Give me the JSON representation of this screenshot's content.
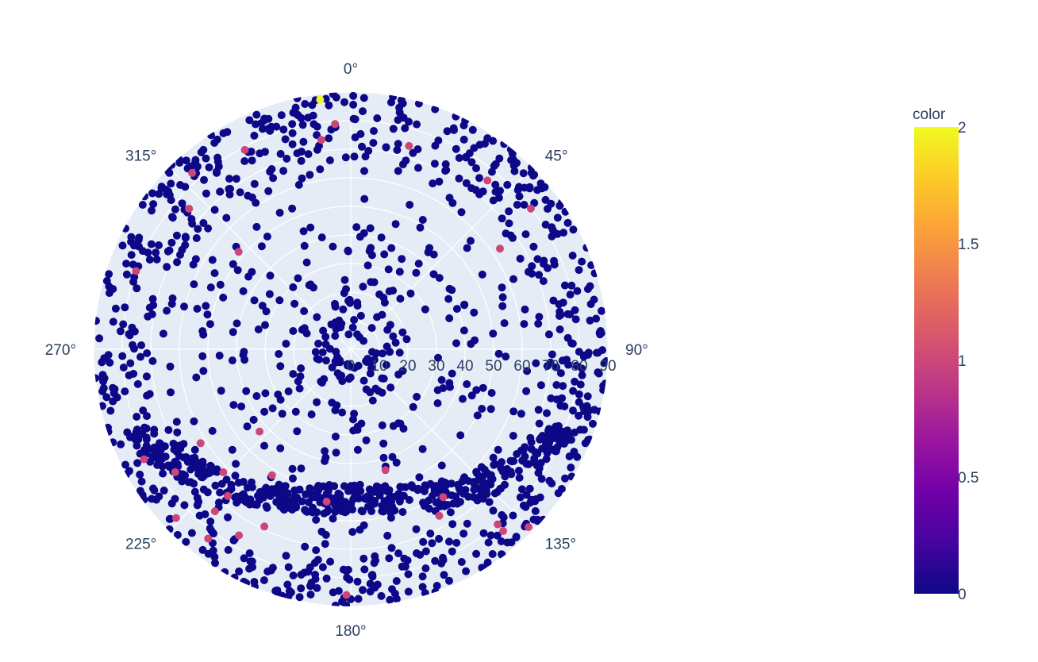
{
  "chart_data": {
    "type": "scatter_polar",
    "title": "",
    "angular_axis": {
      "direction": "clockwise",
      "rotation_zero": "top",
      "ticks": [
        0,
        45,
        90,
        135,
        180,
        225,
        270,
        315
      ],
      "tick_labels": [
        "0°",
        "45°",
        "90°",
        "135°",
        "180°",
        "225°",
        "270°",
        "315°"
      ]
    },
    "radial_axis": {
      "range": [
        0,
        90
      ],
      "ticks": [
        0,
        10,
        20,
        30,
        40,
        50,
        60,
        70,
        80,
        90
      ],
      "tick_labels": [
        "0",
        "10",
        "20",
        "30",
        "40",
        "50",
        "60",
        "70",
        "80",
        "90"
      ],
      "tick_label_angle_deg": 90
    },
    "grid": true,
    "colorscale": "plasma",
    "colorbar": {
      "title": "color",
      "range": [
        0,
        2
      ],
      "ticks": [
        "0",
        "0.5",
        "1",
        "1.5",
        "2"
      ],
      "placement": "right"
    },
    "colors": {
      "plot_bg": "#e5ecf6",
      "grid": "#ffffff",
      "text": "#2a3f5f",
      "value_0": "#0d0887",
      "value_1": "#cc4778",
      "value_2": "#f0f921"
    },
    "highlighted_points": [
      {
        "theta": 353,
        "r": 88,
        "color_value": 2
      },
      {
        "theta": 356,
        "r": 79,
        "color_value": 1
      },
      {
        "theta": 352,
        "r": 74,
        "color_value": 1
      },
      {
        "theta": 16,
        "r": 74,
        "color_value": 1
      },
      {
        "theta": 39,
        "r": 76,
        "color_value": 1
      },
      {
        "theta": 52,
        "r": 80,
        "color_value": 1
      },
      {
        "theta": 56,
        "r": 63,
        "color_value": 1
      },
      {
        "theta": 332,
        "r": 79,
        "color_value": 1
      },
      {
        "theta": 318,
        "r": 83,
        "color_value": 1
      },
      {
        "theta": 311,
        "r": 75,
        "color_value": 1
      },
      {
        "theta": 311,
        "r": 52,
        "color_value": 1
      },
      {
        "theta": 290,
        "r": 80,
        "color_value": 1
      },
      {
        "theta": 238,
        "r": 62,
        "color_value": 1
      },
      {
        "theta": 235,
        "r": 75,
        "color_value": 1
      },
      {
        "theta": 226,
        "r": 62,
        "color_value": 1
      },
      {
        "theta": 220,
        "r": 67,
        "color_value": 1
      },
      {
        "theta": 220,
        "r": 74,
        "color_value": 1
      },
      {
        "theta": 211,
        "r": 76,
        "color_value": 1
      },
      {
        "theta": 217,
        "r": 83,
        "color_value": 1
      },
      {
        "theta": 206,
        "r": 69,
        "color_value": 1
      },
      {
        "theta": 212,
        "r": 52,
        "color_value": 1
      },
      {
        "theta": 228,
        "r": 43,
        "color_value": 1
      },
      {
        "theta": 189,
        "r": 54,
        "color_value": 1
      },
      {
        "theta": 164,
        "r": 44,
        "color_value": 1
      },
      {
        "theta": 148,
        "r": 61,
        "color_value": 1
      },
      {
        "theta": 140,
        "r": 80,
        "color_value": 1
      },
      {
        "theta": 135,
        "r": 88,
        "color_value": 1
      },
      {
        "theta": 181,
        "r": 86,
        "color_value": 1
      },
      {
        "theta": 226,
        "r": 85,
        "color_value": 1
      },
      {
        "theta": 242,
        "r": 82,
        "color_value": 1
      },
      {
        "theta": 140,
        "r": 83,
        "color_value": 1
      },
      {
        "theta": 152,
        "r": 66,
        "color_value": 1
      }
    ],
    "background_cloud": {
      "approx_count": 1500,
      "color_value": 0,
      "distribution": "concentrated toward outer radii and a lower band near 180°, sparse near center"
    }
  }
}
